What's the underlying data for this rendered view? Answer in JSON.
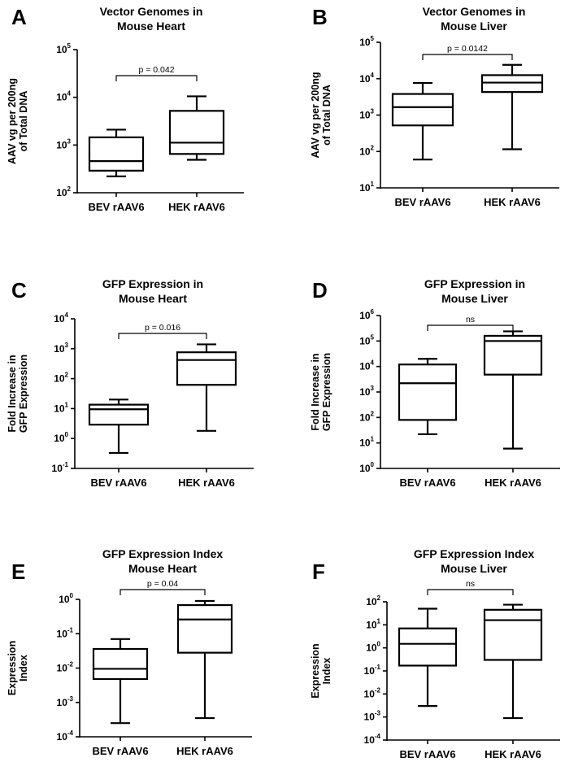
{
  "chart_data": [
    {
      "id": "A",
      "type": "box",
      "letter": "A",
      "title_lines": [
        "Vector Genomes in",
        "Mouse Heart"
      ],
      "ylabel_lines": [
        "AAV vg per 200ng",
        "of Total DNA"
      ],
      "yscale": "log",
      "ylim_exp": [
        2,
        5
      ],
      "categories": [
        "BEV rAAV6",
        "HEK rAAV6"
      ],
      "boxes": [
        {
          "min": 220,
          "q1": 290,
          "median": 460,
          "q3": 1450,
          "max": 2100
        },
        {
          "min": 490,
          "q1": 650,
          "median": 1120,
          "q3": 5200,
          "max": 10500
        }
      ],
      "significance": "p = 0.042"
    },
    {
      "id": "B",
      "type": "box",
      "letter": "B",
      "title_lines": [
        "Vector Genomes in",
        "Mouse Liver"
      ],
      "ylabel_lines": [
        "AAV vg per 200ng",
        "of Total DNA"
      ],
      "yscale": "log",
      "ylim_exp": [
        1,
        5
      ],
      "categories": [
        "BEV rAAV6",
        "HEK rAAV6"
      ],
      "boxes": [
        {
          "min": 60,
          "q1": 520,
          "median": 1650,
          "q3": 3800,
          "max": 7600
        },
        {
          "min": 115,
          "q1": 4300,
          "median": 7800,
          "q3": 12500,
          "max": 24000
        }
      ],
      "significance": "p = 0.0142"
    },
    {
      "id": "C",
      "type": "box",
      "letter": "C",
      "title_lines": [
        "GFP Expression in",
        "Mouse Heart"
      ],
      "ylabel_lines": [
        "Fold Increase in",
        "GFP Expression"
      ],
      "yscale": "log",
      "ylim_exp": [
        -1,
        4
      ],
      "categories": [
        "BEV rAAV6",
        "HEK rAAV6"
      ],
      "boxes": [
        {
          "min": 0.33,
          "q1": 2.9,
          "median": 9.5,
          "q3": 13.5,
          "max": 20
        },
        {
          "min": 1.8,
          "q1": 62,
          "median": 420,
          "q3": 760,
          "max": 1400
        }
      ],
      "significance": "p = 0.016"
    },
    {
      "id": "D",
      "type": "box",
      "letter": "D",
      "title_lines": [
        "GFP Expression in",
        "Mouse Liver"
      ],
      "ylabel_lines": [
        "Fold Increase in",
        "GFP Expression"
      ],
      "yscale": "log",
      "ylim_exp": [
        0,
        6
      ],
      "categories": [
        "BEV rAAV6",
        "HEK rAAV6"
      ],
      "boxes": [
        {
          "min": 22,
          "q1": 80,
          "median": 2200,
          "q3": 12000,
          "max": 20000
        },
        {
          "min": 6,
          "q1": 4800,
          "median": 100000,
          "q3": 160000,
          "max": 240000
        }
      ],
      "significance": "ns"
    },
    {
      "id": "E",
      "type": "box",
      "letter": "E",
      "title_lines": [
        "GFP Expression Index",
        "Mouse Heart"
      ],
      "ylabel_lines": [
        "Expression",
        "Index"
      ],
      "yscale": "log",
      "ylim_exp": [
        -4,
        0
      ],
      "categories": [
        "BEV rAAV6",
        "HEK rAAV6"
      ],
      "boxes": [
        {
          "min": 0.00025,
          "q1": 0.0048,
          "median": 0.0095,
          "q3": 0.036,
          "max": 0.07
        },
        {
          "min": 0.00035,
          "q1": 0.028,
          "median": 0.26,
          "q3": 0.68,
          "max": 0.9
        }
      ],
      "significance": "p = 0.04"
    },
    {
      "id": "F",
      "type": "box",
      "letter": "F",
      "title_lines": [
        "GFP Expression Index",
        "Mouse Liver"
      ],
      "ylabel_lines": [
        "Expression",
        "Index"
      ],
      "yscale": "log",
      "ylim_exp": [
        -4,
        2
      ],
      "categories": [
        "BEV rAAV6",
        "HEK rAAV6"
      ],
      "boxes": [
        {
          "min": 0.003,
          "q1": 0.17,
          "median": 1.5,
          "q3": 7,
          "max": 50
        },
        {
          "min": 0.0009,
          "q1": 0.3,
          "median": 16,
          "q3": 45,
          "max": 75
        }
      ],
      "significance": "ns"
    }
  ]
}
